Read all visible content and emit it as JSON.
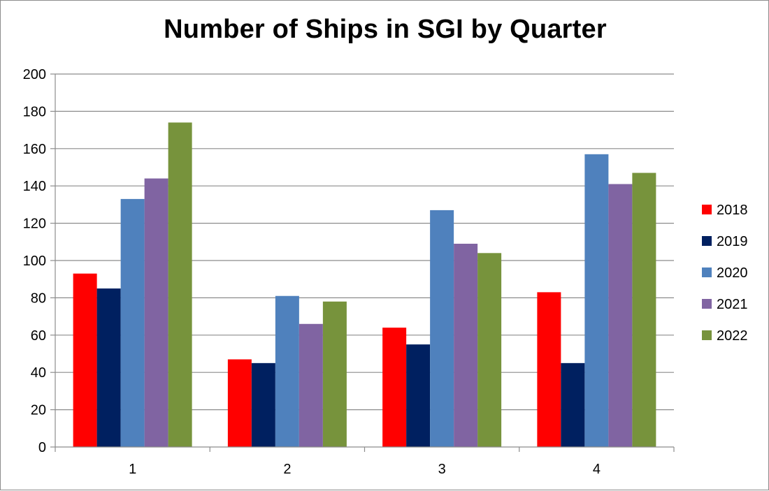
{
  "chart_data": {
    "type": "bar",
    "title": "Number of Ships in SGI by Quarter",
    "xlabel": "",
    "ylabel": "",
    "categories": [
      "1",
      "2",
      "3",
      "4"
    ],
    "ylim": [
      0,
      200
    ],
    "yticks": [
      "0",
      "20",
      "40",
      "60",
      "80",
      "100",
      "120",
      "140",
      "160",
      "180",
      "200"
    ],
    "grid": true,
    "legend_position": "right",
    "series": [
      {
        "name": "2018",
        "color": "#ff0000",
        "values": [
          93,
          47,
          64,
          83
        ]
      },
      {
        "name": "2019",
        "color": "#002060",
        "values": [
          85,
          45,
          55,
          45
        ]
      },
      {
        "name": "2020",
        "color": "#4f81bd",
        "values": [
          133,
          81,
          127,
          157
        ]
      },
      {
        "name": "2021",
        "color": "#8064a2",
        "values": [
          144,
          66,
          109,
          141
        ]
      },
      {
        "name": "2022",
        "color": "#77933c",
        "values": [
          174,
          78,
          104,
          147
        ]
      }
    ]
  }
}
